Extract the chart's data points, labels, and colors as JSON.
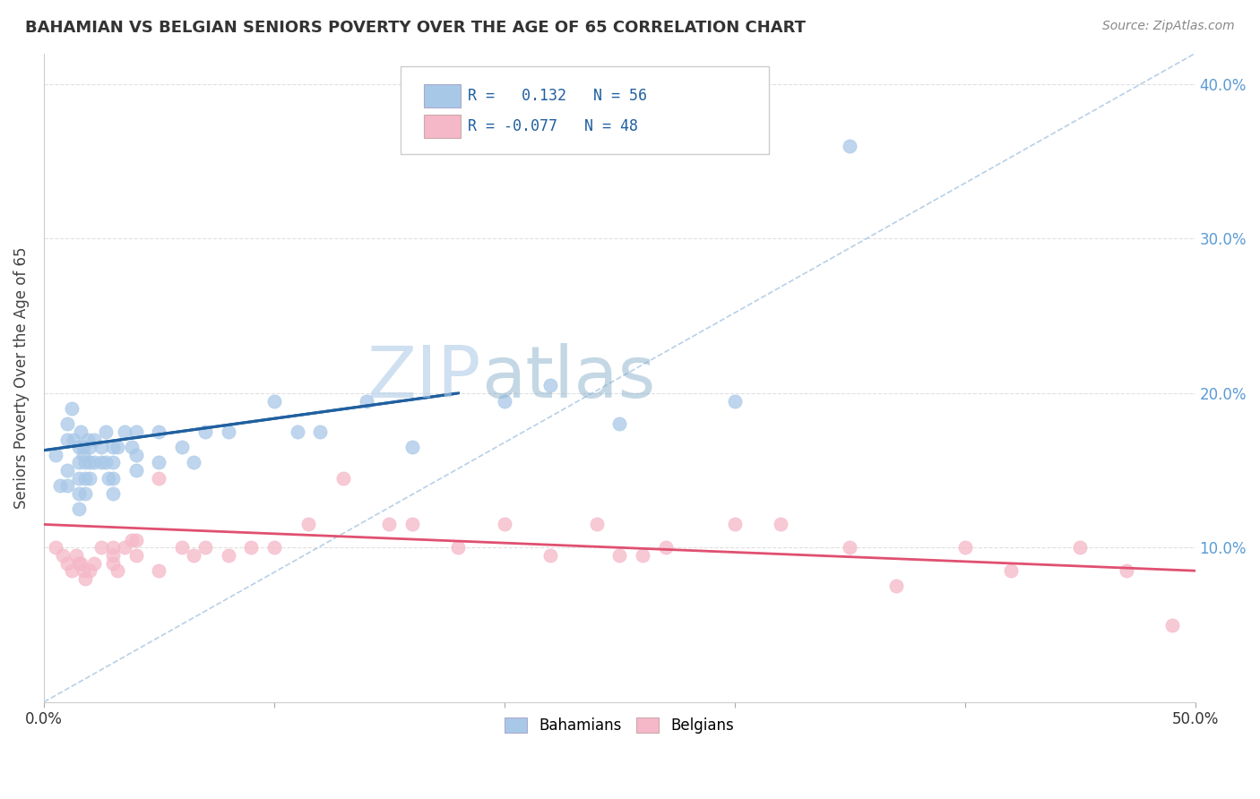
{
  "title": "BAHAMIAN VS BELGIAN SENIORS POVERTY OVER THE AGE OF 65 CORRELATION CHART",
  "source": "Source: ZipAtlas.com",
  "ylabel": "Seniors Poverty Over the Age of 65",
  "xlim": [
    0.0,
    0.5
  ],
  "ylim": [
    0.0,
    0.42
  ],
  "xticks": [
    0.0,
    0.1,
    0.2,
    0.3,
    0.4,
    0.5
  ],
  "xtick_labels": [
    "0.0%",
    "",
    "",
    "",
    "",
    "50.0%"
  ],
  "yticks": [
    0.1,
    0.2,
    0.3,
    0.4
  ],
  "ytick_labels": [
    "10.0%",
    "20.0%",
    "30.0%",
    "40.0%"
  ],
  "bahamian_R": 0.132,
  "bahamian_N": 56,
  "belgian_R": -0.077,
  "belgian_N": 48,
  "bahamian_dot_color": "#a8c8e8",
  "belgian_dot_color": "#f5b8c8",
  "bahamian_fill_color": "#6baed6",
  "belgian_fill_color": "#fc8fa8",
  "bahamian_line_color": "#2060a0",
  "belgian_line_color": "#e05070",
  "diag_line_color": "#b8d0e8",
  "watermark_zip_color": "#c0d8f0",
  "watermark_atlas_color": "#a0b8d0",
  "background_color": "#ffffff",
  "grid_color": "#e0e0e0",
  "bahamians_x": [
    0.005,
    0.007,
    0.01,
    0.01,
    0.01,
    0.01,
    0.012,
    0.013,
    0.015,
    0.015,
    0.015,
    0.015,
    0.015,
    0.016,
    0.017,
    0.017,
    0.018,
    0.018,
    0.018,
    0.019,
    0.02,
    0.02,
    0.02,
    0.022,
    0.022,
    0.025,
    0.025,
    0.027,
    0.027,
    0.028,
    0.03,
    0.03,
    0.03,
    0.03,
    0.032,
    0.035,
    0.038,
    0.04,
    0.04,
    0.04,
    0.05,
    0.05,
    0.06,
    0.065,
    0.07,
    0.08,
    0.1,
    0.11,
    0.12,
    0.14,
    0.16,
    0.2,
    0.22,
    0.25,
    0.3,
    0.35
  ],
  "bahamians_y": [
    0.16,
    0.14,
    0.18,
    0.17,
    0.15,
    0.14,
    0.19,
    0.17,
    0.165,
    0.155,
    0.145,
    0.135,
    0.125,
    0.175,
    0.165,
    0.16,
    0.155,
    0.145,
    0.135,
    0.17,
    0.165,
    0.155,
    0.145,
    0.17,
    0.155,
    0.165,
    0.155,
    0.175,
    0.155,
    0.145,
    0.165,
    0.155,
    0.145,
    0.135,
    0.165,
    0.175,
    0.165,
    0.175,
    0.16,
    0.15,
    0.175,
    0.155,
    0.165,
    0.155,
    0.175,
    0.175,
    0.195,
    0.175,
    0.175,
    0.195,
    0.165,
    0.195,
    0.205,
    0.18,
    0.195,
    0.36
  ],
  "belgians_x": [
    0.005,
    0.008,
    0.01,
    0.012,
    0.014,
    0.015,
    0.016,
    0.017,
    0.018,
    0.02,
    0.022,
    0.025,
    0.03,
    0.03,
    0.03,
    0.032,
    0.035,
    0.038,
    0.04,
    0.04,
    0.05,
    0.05,
    0.06,
    0.065,
    0.07,
    0.08,
    0.09,
    0.1,
    0.115,
    0.13,
    0.15,
    0.16,
    0.18,
    0.2,
    0.22,
    0.24,
    0.25,
    0.26,
    0.27,
    0.3,
    0.32,
    0.35,
    0.37,
    0.4,
    0.42,
    0.45,
    0.47,
    0.49
  ],
  "belgians_y": [
    0.1,
    0.095,
    0.09,
    0.085,
    0.095,
    0.09,
    0.09,
    0.085,
    0.08,
    0.085,
    0.09,
    0.1,
    0.1,
    0.095,
    0.09,
    0.085,
    0.1,
    0.105,
    0.095,
    0.105,
    0.145,
    0.085,
    0.1,
    0.095,
    0.1,
    0.095,
    0.1,
    0.1,
    0.115,
    0.145,
    0.115,
    0.115,
    0.1,
    0.115,
    0.095,
    0.115,
    0.095,
    0.095,
    0.1,
    0.115,
    0.115,
    0.1,
    0.075,
    0.1,
    0.085,
    0.1,
    0.085,
    0.05
  ],
  "bah_line_x0": 0.0,
  "bah_line_y0": 0.163,
  "bah_line_x1": 0.18,
  "bah_line_y1": 0.2,
  "bel_line_x0": 0.0,
  "bel_line_y0": 0.115,
  "bel_line_x1": 0.5,
  "bel_line_y1": 0.085
}
